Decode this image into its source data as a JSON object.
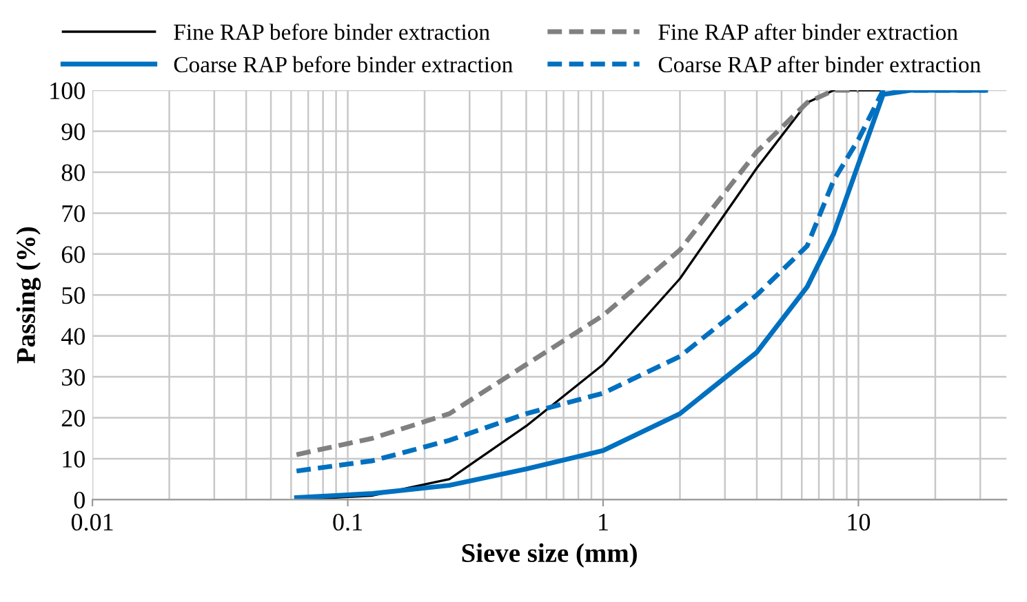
{
  "chart_data": {
    "type": "line",
    "xlabel": "Sieve size (mm)",
    "ylabel": "Passing (%)",
    "log": "x",
    "xlim": [
      0.01,
      38
    ],
    "xticks": [
      0.01,
      0.1,
      1,
      10
    ],
    "ylim": [
      0,
      100
    ],
    "yticks": [
      0,
      10,
      20,
      30,
      40,
      50,
      60,
      70,
      80,
      90,
      100
    ],
    "grid": true,
    "legend": "top",
    "marker": "none",
    "series": [
      {
        "name": "Fine RAP before binder extraction",
        "color": "#000000",
        "line_style": "solid",
        "x": [
          0.063,
          0.125,
          0.25,
          0.5,
          1,
          2,
          4,
          6.3,
          8,
          10,
          12.5
        ],
        "values": [
          0,
          1,
          5,
          18,
          33,
          54,
          81,
          97,
          100,
          100,
          100
        ]
      },
      {
        "name": "Fine RAP after binder extraction",
        "color": "#808080",
        "line_style": "dashed",
        "x": [
          0.063,
          0.125,
          0.25,
          0.5,
          1,
          2,
          4,
          6.3,
          8,
          10
        ],
        "values": [
          11,
          15,
          21,
          33,
          45,
          61,
          85,
          97,
          100,
          100
        ]
      },
      {
        "name": "Coarse RAP before binder extraction",
        "color": "#0070c0",
        "line_style": "solid",
        "x": [
          0.063,
          0.125,
          0.25,
          0.5,
          1,
          2,
          4,
          6.3,
          8,
          10,
          12.5,
          16,
          31.5
        ],
        "values": [
          0.5,
          1.5,
          3.5,
          7.5,
          12,
          21,
          36,
          52,
          65,
          82,
          99,
          100,
          100
        ]
      },
      {
        "name": "Coarse RAP after binder extraction",
        "color": "#0070c0",
        "line_style": "dashed",
        "x": [
          0.063,
          0.125,
          0.25,
          0.5,
          1,
          2,
          4,
          6.3,
          8,
          10,
          12.5,
          31.5
        ],
        "values": [
          7,
          9.5,
          14.5,
          21,
          26,
          35,
          50,
          62,
          78,
          88,
          100,
          100
        ]
      }
    ]
  }
}
